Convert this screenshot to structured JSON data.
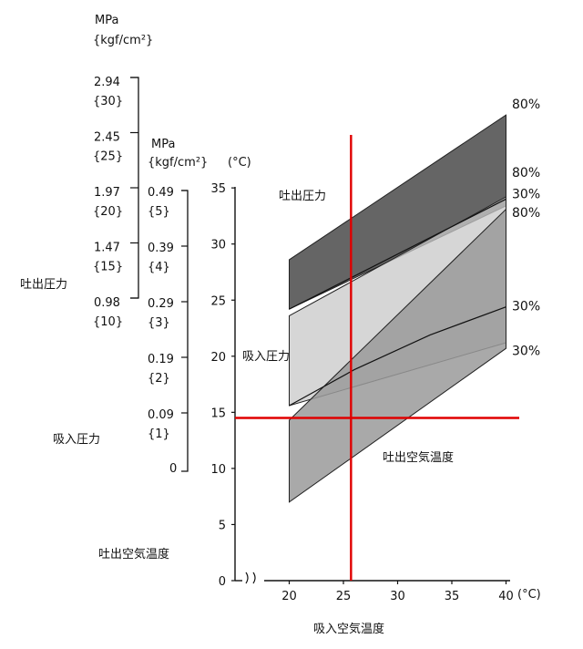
{
  "chart_data": {
    "type": "area",
    "xlabel": "吸入空気温度",
    "x_unit": "(°C)",
    "xlim": [
      15,
      40
    ],
    "x_ticks": [
      20,
      25,
      30,
      35,
      40
    ],
    "y_unit": "(°C)",
    "ylim": [
      0,
      35
    ],
    "y_ticks": [
      0,
      5,
      10,
      15,
      20,
      25,
      30,
      35
    ],
    "axis_labels": {
      "discharge_pressure": "吐出圧力",
      "suction_pressure": "吸入圧力",
      "discharge_air_temp": "吐出空気温度"
    },
    "discharge_pressure_axis": {
      "unit": "MPa",
      "unit_alt": "{kgf/cm²}",
      "ticks": [
        {
          "mpa": "2.94",
          "kgf": "{30}"
        },
        {
          "mpa": "2.45",
          "kgf": "{25}"
        },
        {
          "mpa": "1.97",
          "kgf": "{20}"
        },
        {
          "mpa": "1.47",
          "kgf": "{15}"
        },
        {
          "mpa": "0.98",
          "kgf": "{10}"
        }
      ]
    },
    "suction_pressure_axis": {
      "unit": "MPa",
      "unit_alt": "{kgf/cm²}",
      "ticks": [
        {
          "mpa": "0.49",
          "kgf": "{5}"
        },
        {
          "mpa": "0.39",
          "kgf": "{4}"
        },
        {
          "mpa": "0.29",
          "kgf": "{3}"
        },
        {
          "mpa": "0.19",
          "kgf": "{2}"
        },
        {
          "mpa": "0.09",
          "kgf": "{1}"
        },
        {
          "mpa": "0",
          "kgf": ""
        }
      ]
    },
    "bands": [
      {
        "name": "吐出圧力",
        "x": [
          20,
          40
        ],
        "upper": [
          28.6,
          41.5
        ],
        "lower": [
          24.2,
          33.4
        ],
        "fill": "#4a4a4a"
      },
      {
        "name": "吸入圧力",
        "x": [
          20,
          40
        ],
        "upper": [
          23.6,
          34.2
        ],
        "lower": [
          15.6,
          21.2
        ],
        "fill": "#c8c8c8"
      },
      {
        "name": "吐出空気温度",
        "x": [
          20,
          40
        ],
        "upper": [
          14.3,
          33.1
        ],
        "lower": [
          7.0,
          20.7
        ],
        "fill": "#9a9a9a"
      }
    ],
    "curves": [
      {
        "x": [
          20,
          40
        ],
        "y": [
          24.2,
          34.0
        ]
      },
      {
        "x": [
          20,
          26,
          33,
          40
        ],
        "y": [
          15.6,
          18.8,
          21.9,
          24.4
        ]
      }
    ],
    "band_labels": [
      {
        "text": "80%",
        "y": 42.5
      },
      {
        "text": "80%",
        "y": 36.4
      },
      {
        "text": "30%",
        "y": 34.5
      },
      {
        "text": "80%",
        "y": 32.8
      },
      {
        "text": "30%",
        "y": 24.5
      },
      {
        "text": "30%",
        "y": 20.5
      }
    ],
    "reference_lines": {
      "x": 25.7,
      "y": 14.5,
      "color": "#e00000"
    }
  }
}
